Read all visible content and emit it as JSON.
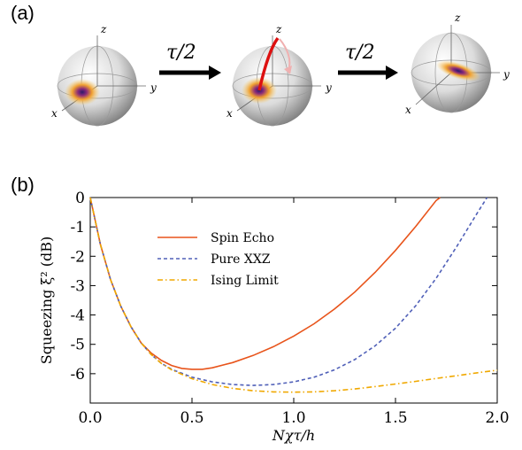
{
  "panel_a": {
    "label": "(a)",
    "arrow1_label": "τ/2",
    "arrow2_label": "τ/2",
    "sphere_axes": {
      "x": "x",
      "y": "y",
      "z": "z"
    }
  },
  "panel_b": {
    "label": "(b)"
  },
  "chart_data": {
    "type": "line",
    "xlabel": "Nχτ/h",
    "ylabel": "Squeezing ξ² (dB)",
    "xlim": [
      0.0,
      2.0
    ],
    "ylim": [
      -7,
      0
    ],
    "xticks": [
      "0.0",
      "0.5",
      "1.0",
      "1.5",
      "2.0"
    ],
    "yticks": [
      "0",
      "-1",
      "-2",
      "-3",
      "-4",
      "-5",
      "-6"
    ],
    "legend_position": "upper-left",
    "series": [
      {
        "name": "Spin Echo",
        "color": "#e8541b",
        "dash": "solid",
        "x": [
          0.0,
          0.05,
          0.1,
          0.15,
          0.2,
          0.25,
          0.3,
          0.35,
          0.4,
          0.45,
          0.5,
          0.55,
          0.6,
          0.7,
          0.8,
          0.9,
          1.0,
          1.1,
          1.2,
          1.3,
          1.4,
          1.5,
          1.6,
          1.7,
          1.72
        ],
        "y": [
          0.0,
          -1.6,
          -2.8,
          -3.7,
          -4.4,
          -4.95,
          -5.3,
          -5.55,
          -5.72,
          -5.82,
          -5.85,
          -5.85,
          -5.8,
          -5.62,
          -5.38,
          -5.08,
          -4.72,
          -4.3,
          -3.8,
          -3.22,
          -2.55,
          -1.8,
          -0.98,
          -0.1,
          0.0
        ]
      },
      {
        "name": "Pure XXZ",
        "color": "#5060b8",
        "dash": "dashed",
        "x": [
          0.0,
          0.05,
          0.1,
          0.15,
          0.2,
          0.25,
          0.3,
          0.35,
          0.4,
          0.5,
          0.6,
          0.7,
          0.8,
          0.9,
          1.0,
          1.1,
          1.2,
          1.3,
          1.4,
          1.5,
          1.6,
          1.7,
          1.8,
          1.9,
          1.95
        ],
        "y": [
          0.0,
          -1.6,
          -2.8,
          -3.7,
          -4.4,
          -4.95,
          -5.35,
          -5.65,
          -5.85,
          -6.12,
          -6.28,
          -6.37,
          -6.4,
          -6.37,
          -6.28,
          -6.12,
          -5.87,
          -5.52,
          -5.05,
          -4.45,
          -3.68,
          -2.75,
          -1.68,
          -0.55,
          0.0
        ]
      },
      {
        "name": "Ising Limit",
        "color": "#f0a800",
        "dash": "dashdot",
        "x": [
          0.0,
          0.05,
          0.1,
          0.15,
          0.2,
          0.25,
          0.3,
          0.35,
          0.4,
          0.5,
          0.6,
          0.7,
          0.8,
          0.9,
          1.0,
          1.1,
          1.2,
          1.3,
          1.4,
          1.5,
          1.6,
          1.7,
          1.8,
          1.9,
          2.0
        ],
        "y": [
          0.0,
          -1.6,
          -2.8,
          -3.7,
          -4.4,
          -4.95,
          -5.35,
          -5.65,
          -5.87,
          -6.17,
          -6.37,
          -6.5,
          -6.58,
          -6.62,
          -6.63,
          -6.62,
          -6.58,
          -6.52,
          -6.44,
          -6.35,
          -6.26,
          -6.16,
          -6.07,
          -5.97,
          -5.88
        ]
      }
    ]
  }
}
